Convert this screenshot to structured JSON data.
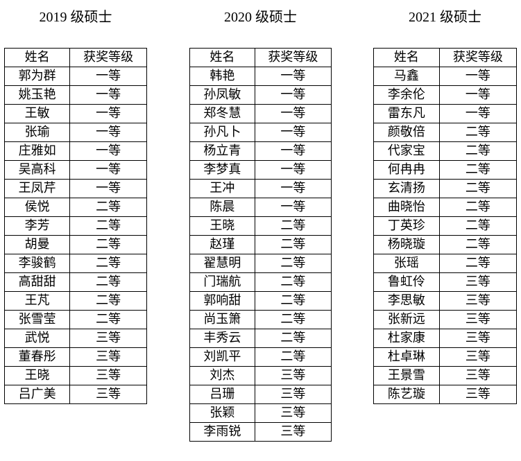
{
  "document": {
    "background_color": "#ffffff",
    "text_color": "#000000",
    "border_color": "#000000"
  },
  "tables": [
    {
      "title": "2019 级硕士",
      "columns": [
        "姓名",
        "获奖等级"
      ],
      "rows": [
        {
          "name": "郭为群",
          "award": "一等"
        },
        {
          "name": "姚玉艳",
          "award": "一等"
        },
        {
          "name": "王敏",
          "award": "一等"
        },
        {
          "name": "张瑜",
          "award": "一等"
        },
        {
          "name": "庄雅如",
          "award": "一等"
        },
        {
          "name": "吴高科",
          "award": "一等"
        },
        {
          "name": "王凤芹",
          "award": "一等"
        },
        {
          "name": "侯悦",
          "award": "二等"
        },
        {
          "name": "李芳",
          "award": "二等"
        },
        {
          "name": "胡曼",
          "award": "二等"
        },
        {
          "name": "李骏鹤",
          "award": "二等"
        },
        {
          "name": "高甜甜",
          "award": "二等"
        },
        {
          "name": "王芃",
          "award": "二等"
        },
        {
          "name": "张雪莹",
          "award": "二等"
        },
        {
          "name": "武悦",
          "award": "三等"
        },
        {
          "name": "董春彤",
          "award": "三等"
        },
        {
          "name": "王晓",
          "award": "三等"
        },
        {
          "name": "吕广美",
          "award": "三等"
        }
      ]
    },
    {
      "title": "2020 级硕士",
      "columns": [
        "姓名",
        "获奖等级"
      ],
      "rows": [
        {
          "name": "韩艳",
          "award": "一等"
        },
        {
          "name": "孙凤敏",
          "award": "一等"
        },
        {
          "name": "郑冬慧",
          "award": "一等"
        },
        {
          "name": "孙凡卜",
          "award": "一等"
        },
        {
          "name": "杨立青",
          "award": "一等"
        },
        {
          "name": "李梦真",
          "award": "一等"
        },
        {
          "name": "王冲",
          "award": "一等"
        },
        {
          "name": "陈晨",
          "award": "一等"
        },
        {
          "name": "王晓",
          "award": "二等"
        },
        {
          "name": "赵瑾",
          "award": "二等"
        },
        {
          "name": "翟慧明",
          "award": "二等"
        },
        {
          "name": "门瑞航",
          "award": "二等"
        },
        {
          "name": "郭响甜",
          "award": "二等"
        },
        {
          "name": "尚玉箫",
          "award": "二等"
        },
        {
          "name": "丰秀云",
          "award": "二等"
        },
        {
          "name": "刘凯平",
          "award": "二等"
        },
        {
          "name": "刘杰",
          "award": "三等"
        },
        {
          "name": "吕珊",
          "award": "三等"
        },
        {
          "name": "张颖",
          "award": "三等"
        },
        {
          "name": "李雨锐",
          "award": "三等"
        }
      ]
    },
    {
      "title": "2021 级硕士",
      "columns": [
        "姓名",
        "获奖等级"
      ],
      "rows": [
        {
          "name": "马鑫",
          "award": "一等"
        },
        {
          "name": "李余伦",
          "award": "一等"
        },
        {
          "name": "雷东凡",
          "award": "一等"
        },
        {
          "name": "颜敬倍",
          "award": "二等"
        },
        {
          "name": "代家宝",
          "award": "二等"
        },
        {
          "name": "何冉冉",
          "award": "二等"
        },
        {
          "name": "玄清扬",
          "award": "二等"
        },
        {
          "name": "曲晓怡",
          "award": "二等"
        },
        {
          "name": "丁英珍",
          "award": "二等"
        },
        {
          "name": "杨晓璇",
          "award": "二等"
        },
        {
          "name": "张瑶",
          "award": "二等"
        },
        {
          "name": "鲁虹伶",
          "award": "三等"
        },
        {
          "name": "李思敏",
          "award": "三等"
        },
        {
          "name": "张新远",
          "award": "三等"
        },
        {
          "name": "杜家康",
          "award": "三等"
        },
        {
          "name": "杜卓琳",
          "award": "三等"
        },
        {
          "name": "王景雪",
          "award": "三等"
        },
        {
          "name": "陈艺璇",
          "award": "三等"
        }
      ]
    }
  ]
}
